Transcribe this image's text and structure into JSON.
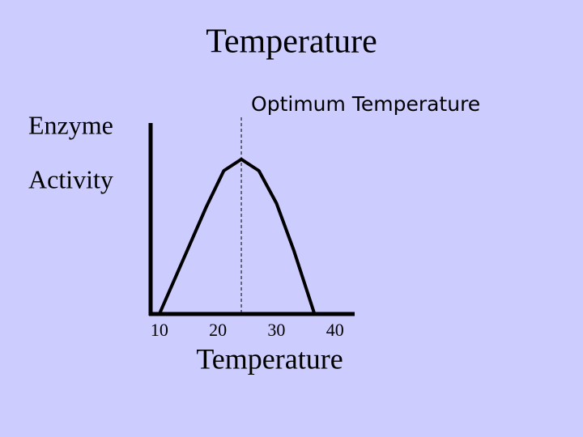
{
  "chart_data": {
    "type": "line",
    "title": "Temperature",
    "ylabel": [
      "Enzyme",
      "Activity"
    ],
    "xlabel": "Temperature",
    "annotation": {
      "text": "Optimum Temperature",
      "x": 24
    },
    "x": [
      10,
      15,
      18,
      21,
      24,
      27,
      30,
      33,
      36.5
    ],
    "series": [
      {
        "name": null,
        "color": "#000000",
        "values": [
          0,
          35,
          56,
          75,
          81,
          75,
          58,
          33,
          0
        ]
      }
    ],
    "xlim": [
      8.5,
      43.5
    ],
    "xticks": [
      10,
      20,
      30,
      40
    ],
    "ylim": [
      0,
      100
    ],
    "grid": false
  }
}
